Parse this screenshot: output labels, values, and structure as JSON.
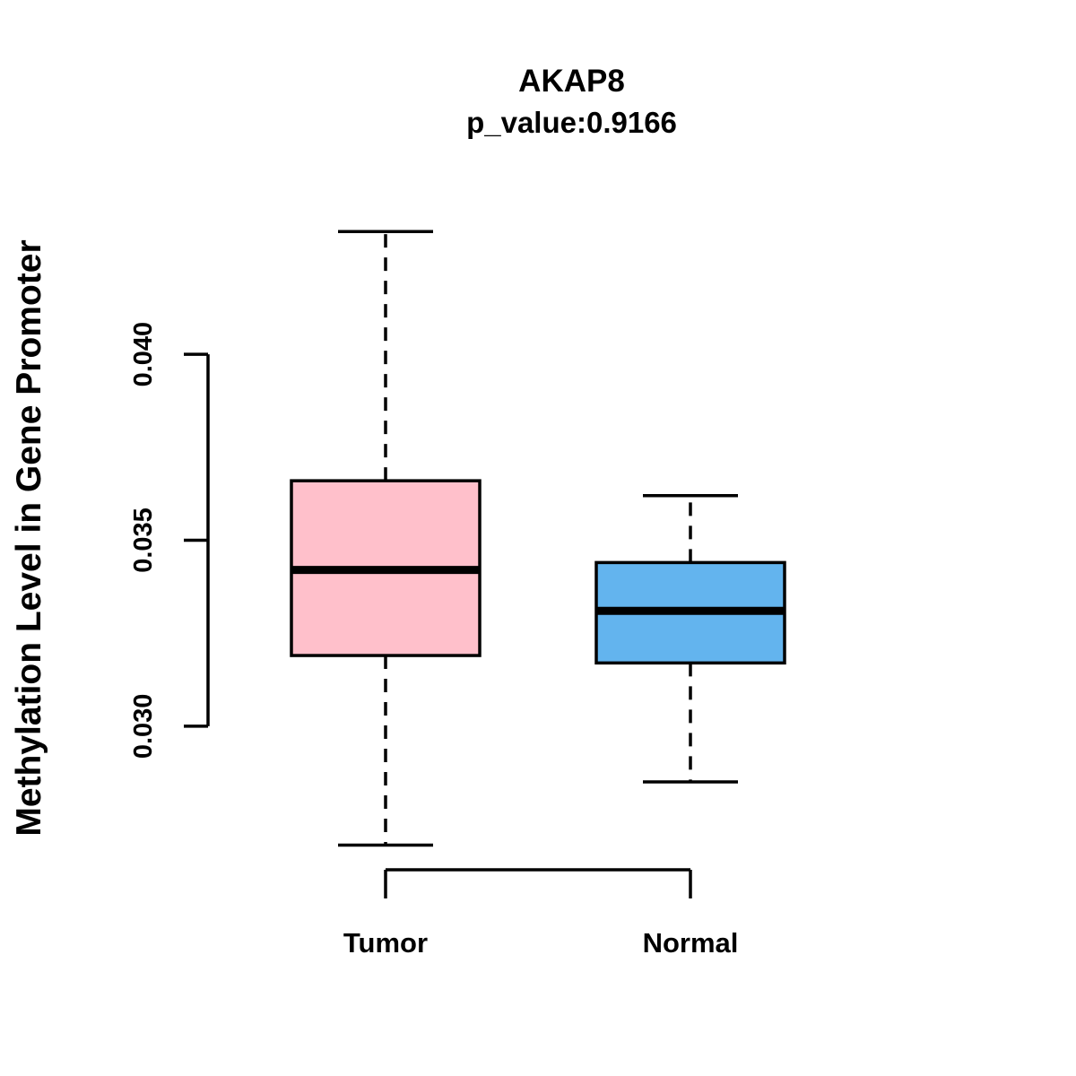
{
  "chart_data": {
    "type": "boxplot",
    "title": "AKAP8",
    "subtitle": "p_value:0.9166",
    "ylabel": "Methylation Level in Gene Promoter",
    "xlabel": "",
    "categories": [
      "Tumor",
      "Normal"
    ],
    "ylim": [
      0.0265,
      0.0435
    ],
    "yticks": [
      {
        "value": 0.03,
        "label": "0.030"
      },
      {
        "value": 0.035,
        "label": "0.035"
      },
      {
        "value": 0.04,
        "label": "0.040"
      }
    ],
    "grid": false,
    "legend": "none",
    "series": [
      {
        "name": "Tumor",
        "color": "#FFC0CB",
        "whisker_low": 0.0268,
        "q1": 0.0319,
        "median": 0.0342,
        "q3": 0.0366,
        "whisker_high": 0.0433
      },
      {
        "name": "Normal",
        "color": "#63B4EE",
        "whisker_low": 0.0285,
        "q1": 0.0317,
        "median": 0.0331,
        "q3": 0.0344,
        "whisker_high": 0.0362
      }
    ],
    "colors": {
      "box_stroke": "#000000",
      "median": "#000000",
      "axis": "#000000",
      "background": "#FFFFFF"
    }
  }
}
